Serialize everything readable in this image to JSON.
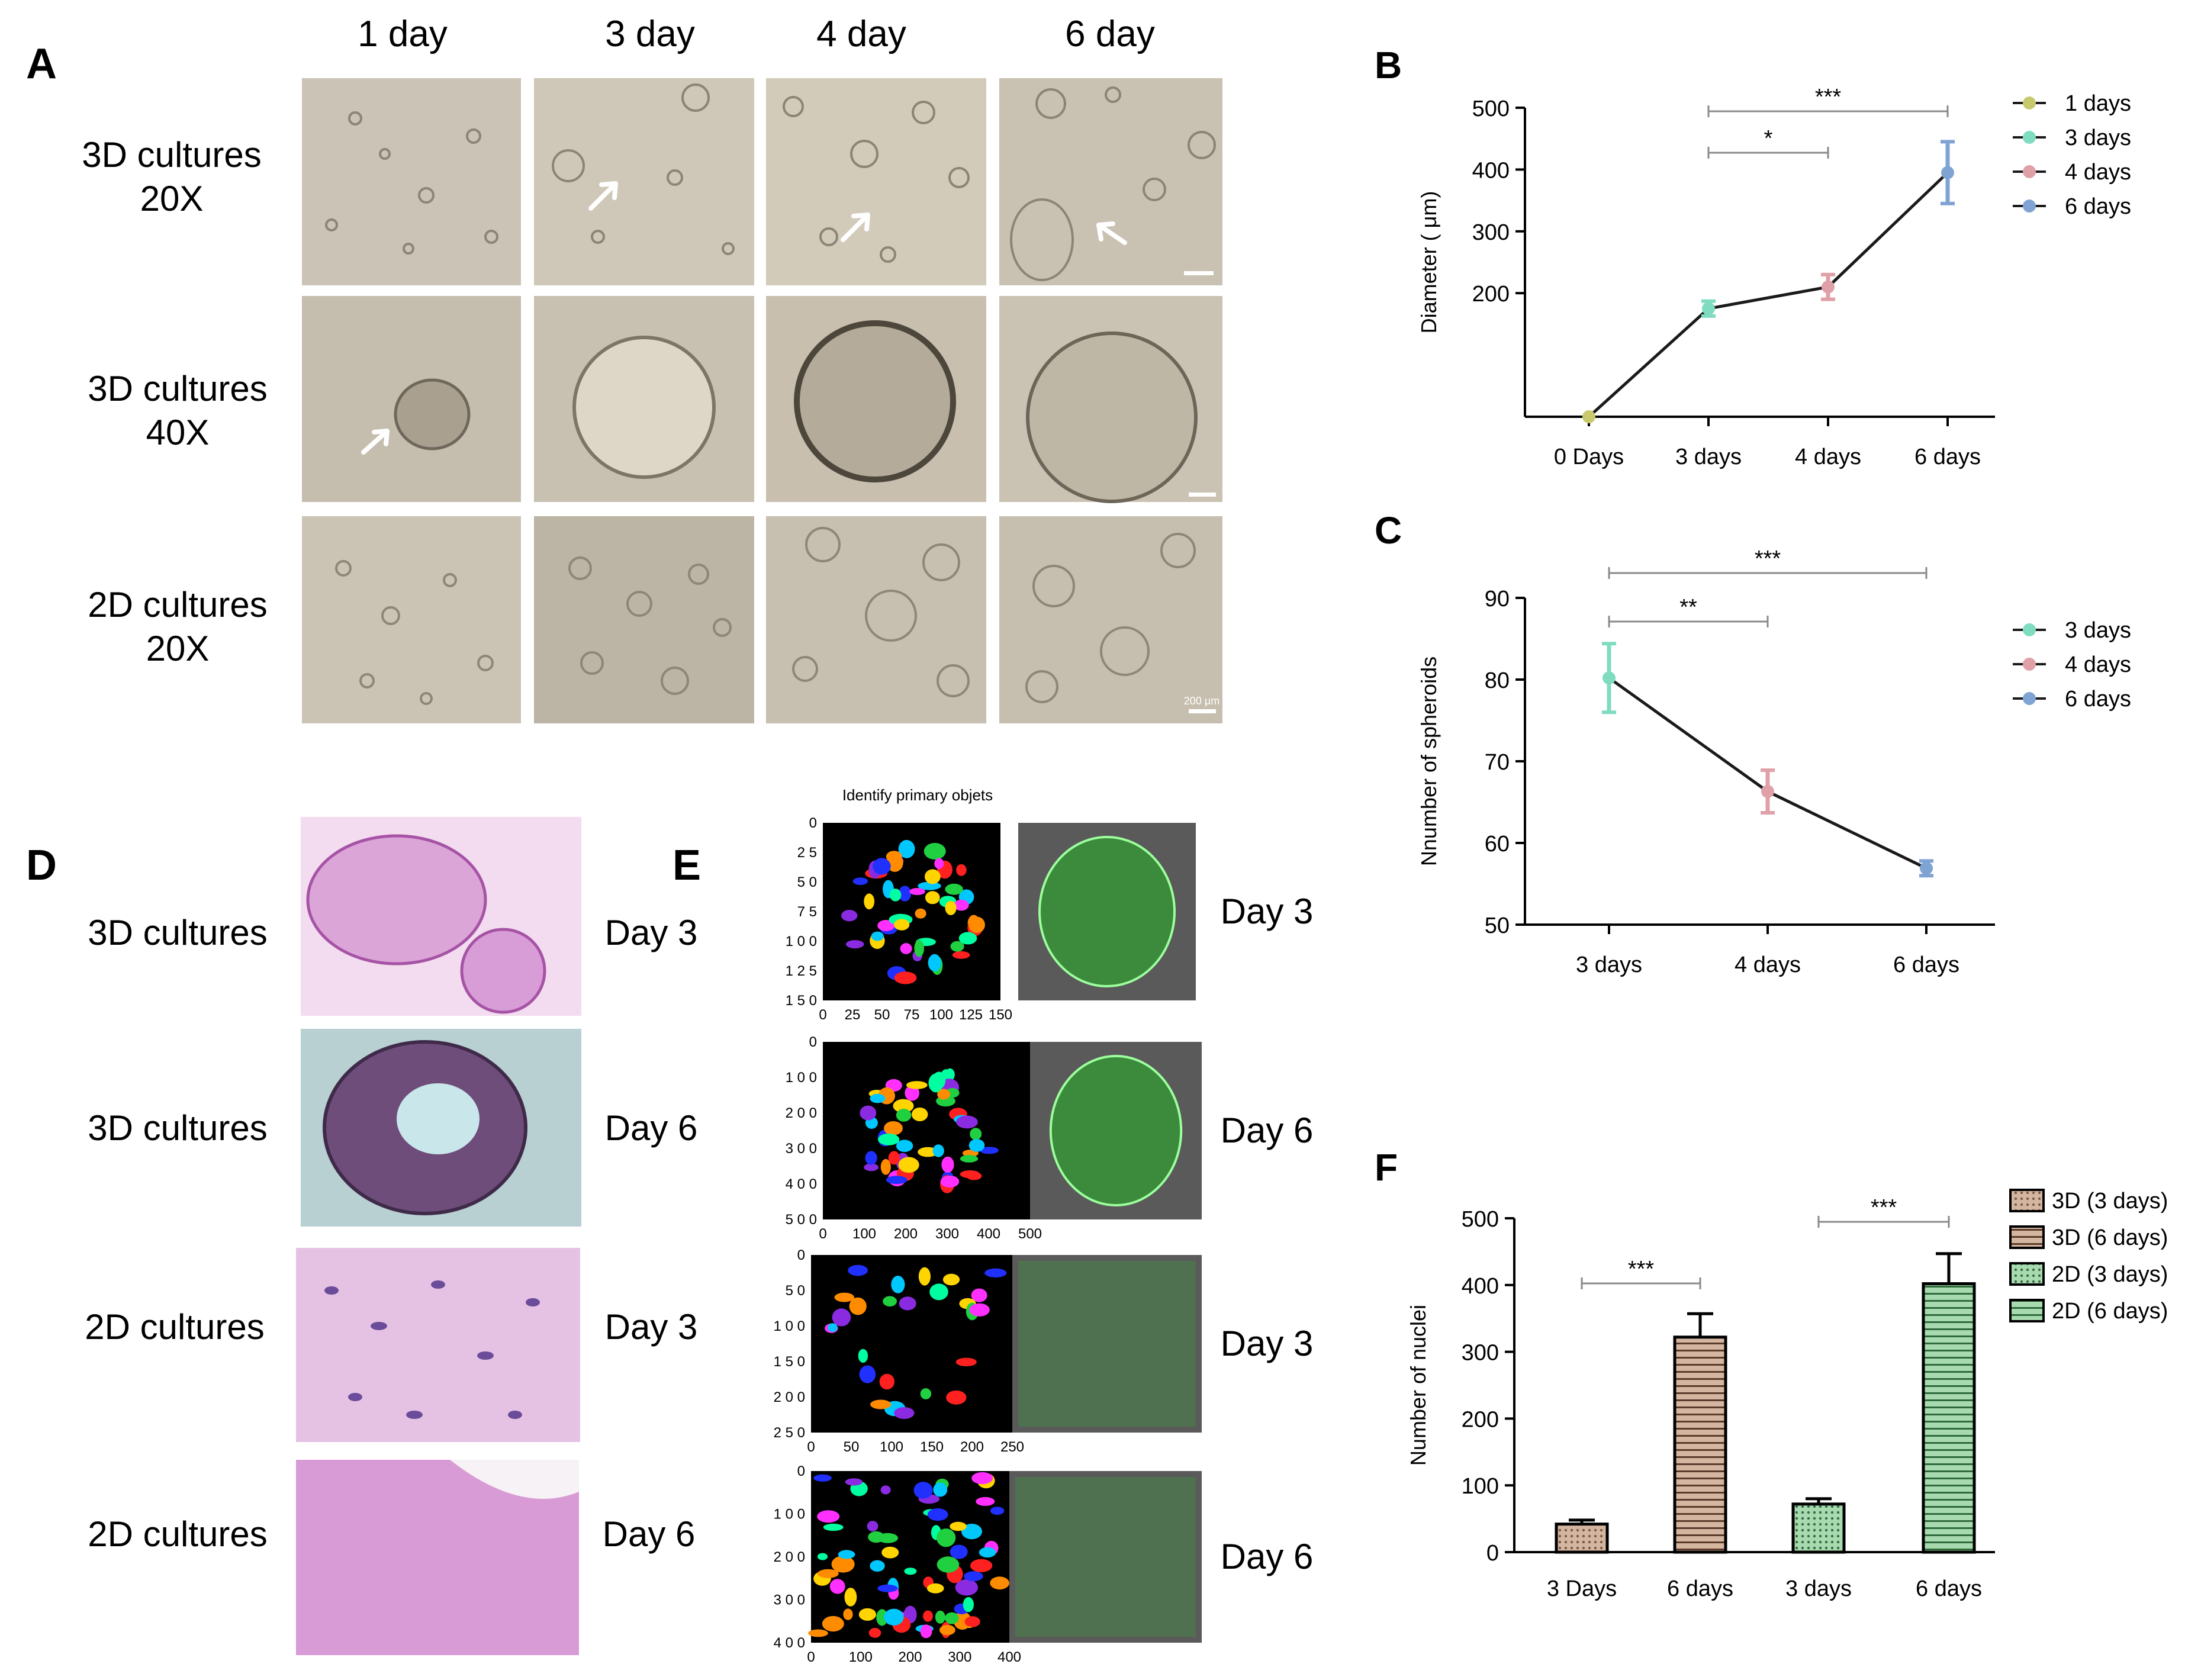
{
  "panelA": {
    "letter": "A",
    "columns": [
      "1 day",
      "3 day",
      "4 day",
      "6 day"
    ],
    "rows": [
      {
        "line1": "3D cultures",
        "line2": "20X"
      },
      {
        "line1": "3D cultures",
        "line2": "40X"
      },
      {
        "line1": "2D cultures",
        "line2": "20X"
      }
    ],
    "scale_label": "200 μm"
  },
  "panelD": {
    "letter": "D",
    "rows": [
      {
        "culture": "3D cultures",
        "day": "Day 3"
      },
      {
        "culture": "3D cultures",
        "day": "Day 6"
      },
      {
        "culture": "2D cultures",
        "day": "Day 3"
      },
      {
        "culture": "2D cultures",
        "day": "Day 6"
      }
    ]
  },
  "panelE": {
    "letter": "E",
    "title": "Identify primary objets",
    "rows": [
      {
        "day": "Day 3",
        "yticks": [
          "0",
          "2 5",
          "5 0",
          "7 5",
          "1 0 0",
          "1 2 5",
          "1 5 0"
        ],
        "xticks": [
          "0",
          "25",
          "50",
          "75",
          "100",
          "125",
          "150"
        ]
      },
      {
        "day": "Day 6",
        "yticks": [
          "0",
          "1 0 0",
          "2 0 0",
          "3 0 0",
          "4 0 0",
          "5 0 0"
        ],
        "xticks": [
          "0",
          "100",
          "200",
          "300",
          "400",
          "500"
        ]
      },
      {
        "day": "Day 3",
        "yticks": [
          "0",
          "5 0",
          "1 0 0",
          "1 5 0",
          "2 0 0",
          "2 5 0"
        ],
        "xticks": [
          "0",
          "50",
          "100",
          "150",
          "200",
          "250"
        ]
      },
      {
        "day": "Day 6",
        "yticks": [
          "0",
          "1 0 0",
          "2 0 0",
          "3 0 0",
          "4 0 0"
        ],
        "xticks": [
          "0",
          "100",
          "200",
          "300",
          "400"
        ]
      }
    ]
  },
  "chart_data": [
    {
      "panel": "B",
      "type": "line",
      "x": [
        "0 Days",
        "3 days",
        "4 days",
        "6 days"
      ],
      "values": [
        0,
        175,
        210,
        395
      ],
      "errors": [
        0,
        12,
        20,
        50
      ],
      "point_colors": [
        "#c8c86e",
        "#7fdcc0",
        "#e0a0a8",
        "#7fa4d4"
      ],
      "ylabel": "Diameter ( μm)",
      "ylim": [
        0,
        500
      ],
      "yticks": [
        200,
        300,
        400,
        500
      ],
      "legend": [
        "1 days",
        "3 days",
        "4 days",
        "6 days"
      ],
      "significance": [
        {
          "label": "***",
          "from": "3 days",
          "to": "6 days"
        },
        {
          "label": "*",
          "from": "3 days",
          "to": "4 days"
        }
      ]
    },
    {
      "panel": "C",
      "type": "line",
      "x": [
        "3 days",
        "4 days",
        "6 days"
      ],
      "values": [
        80.2,
        66.3,
        56.9
      ],
      "errors": [
        4.2,
        2.6,
        0.9
      ],
      "point_colors": [
        "#7fdcc0",
        "#e0a0a8",
        "#7fa4d4"
      ],
      "ylabel": "Nnumber of spheroids",
      "ylim": [
        50,
        90
      ],
      "yticks": [
        50,
        60,
        70,
        80,
        90
      ],
      "legend": [
        "3 days",
        "4 days",
        "6 days"
      ],
      "significance": [
        {
          "label": "***",
          "from": "3 days",
          "to": "6 days"
        },
        {
          "label": "**",
          "from": "3 days",
          "to": "4 days"
        }
      ]
    },
    {
      "panel": "F",
      "type": "bar",
      "categories": [
        "3 Days",
        "6 days",
        "3 days",
        "6 days"
      ],
      "values": [
        42,
        322,
        72,
        402
      ],
      "errors": [
        6,
        35,
        8,
        45
      ],
      "series_names": [
        "3D (3 days)",
        "3D (6 days)",
        "2D (3 days)",
        "2D (6 days)"
      ],
      "fill_colors": [
        "#d4b6a0",
        "#d4b6a0",
        "#a8dab0",
        "#a8dab0"
      ],
      "patterns": [
        "dots",
        "hlines",
        "dots",
        "hlines"
      ],
      "ylabel": "Number of nuclei",
      "ylim": [
        0,
        500
      ],
      "yticks": [
        0,
        100,
        200,
        300,
        400,
        500
      ],
      "significance": [
        {
          "label": "***",
          "from": 0,
          "to": 1
        },
        {
          "label": "***",
          "from": 2,
          "to": 3
        }
      ]
    }
  ]
}
